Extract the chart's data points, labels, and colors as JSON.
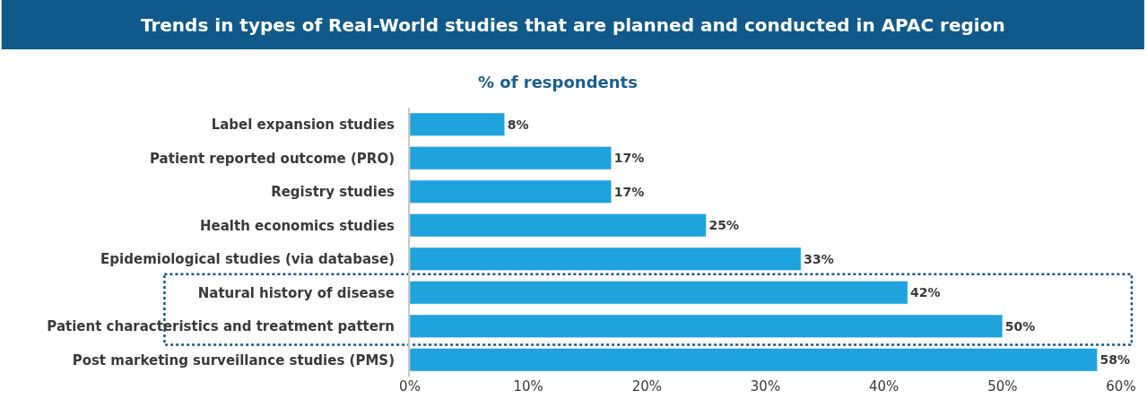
{
  "chart_data": {
    "type": "bar",
    "orientation": "horizontal",
    "title": "Trends in types of Real-World studies that are planned and conducted in APAC region",
    "subtitle": "% of respondents",
    "categories": [
      "Label expansion studies",
      "Patient reported outcome (PRO)",
      "Registry studies",
      "Health economics studies",
      "Epidemiological studies (via database)",
      "Natural history of disease",
      "Patient characteristics and treatment pattern",
      "Post marketing surveillance studies (PMS)"
    ],
    "values": [
      8,
      17,
      17,
      25,
      33,
      42,
      50,
      58
    ],
    "value_labels": [
      "8%",
      "17%",
      "17%",
      "25%",
      "33%",
      "42%",
      "50%",
      "58%"
    ],
    "color": "#1ea3dc",
    "xlim": [
      0,
      60
    ],
    "xticks": [
      {
        "value": 0,
        "label": "0%"
      },
      {
        "value": 10,
        "label": "10%"
      },
      {
        "value": 20,
        "label": "20%"
      },
      {
        "value": 30,
        "label": "30%"
      },
      {
        "value": 40,
        "label": "40%"
      },
      {
        "value": 50,
        "label": "50%"
      },
      {
        "value": 60,
        "label": "60%"
      }
    ],
    "grid": false,
    "legend": false
  }
}
